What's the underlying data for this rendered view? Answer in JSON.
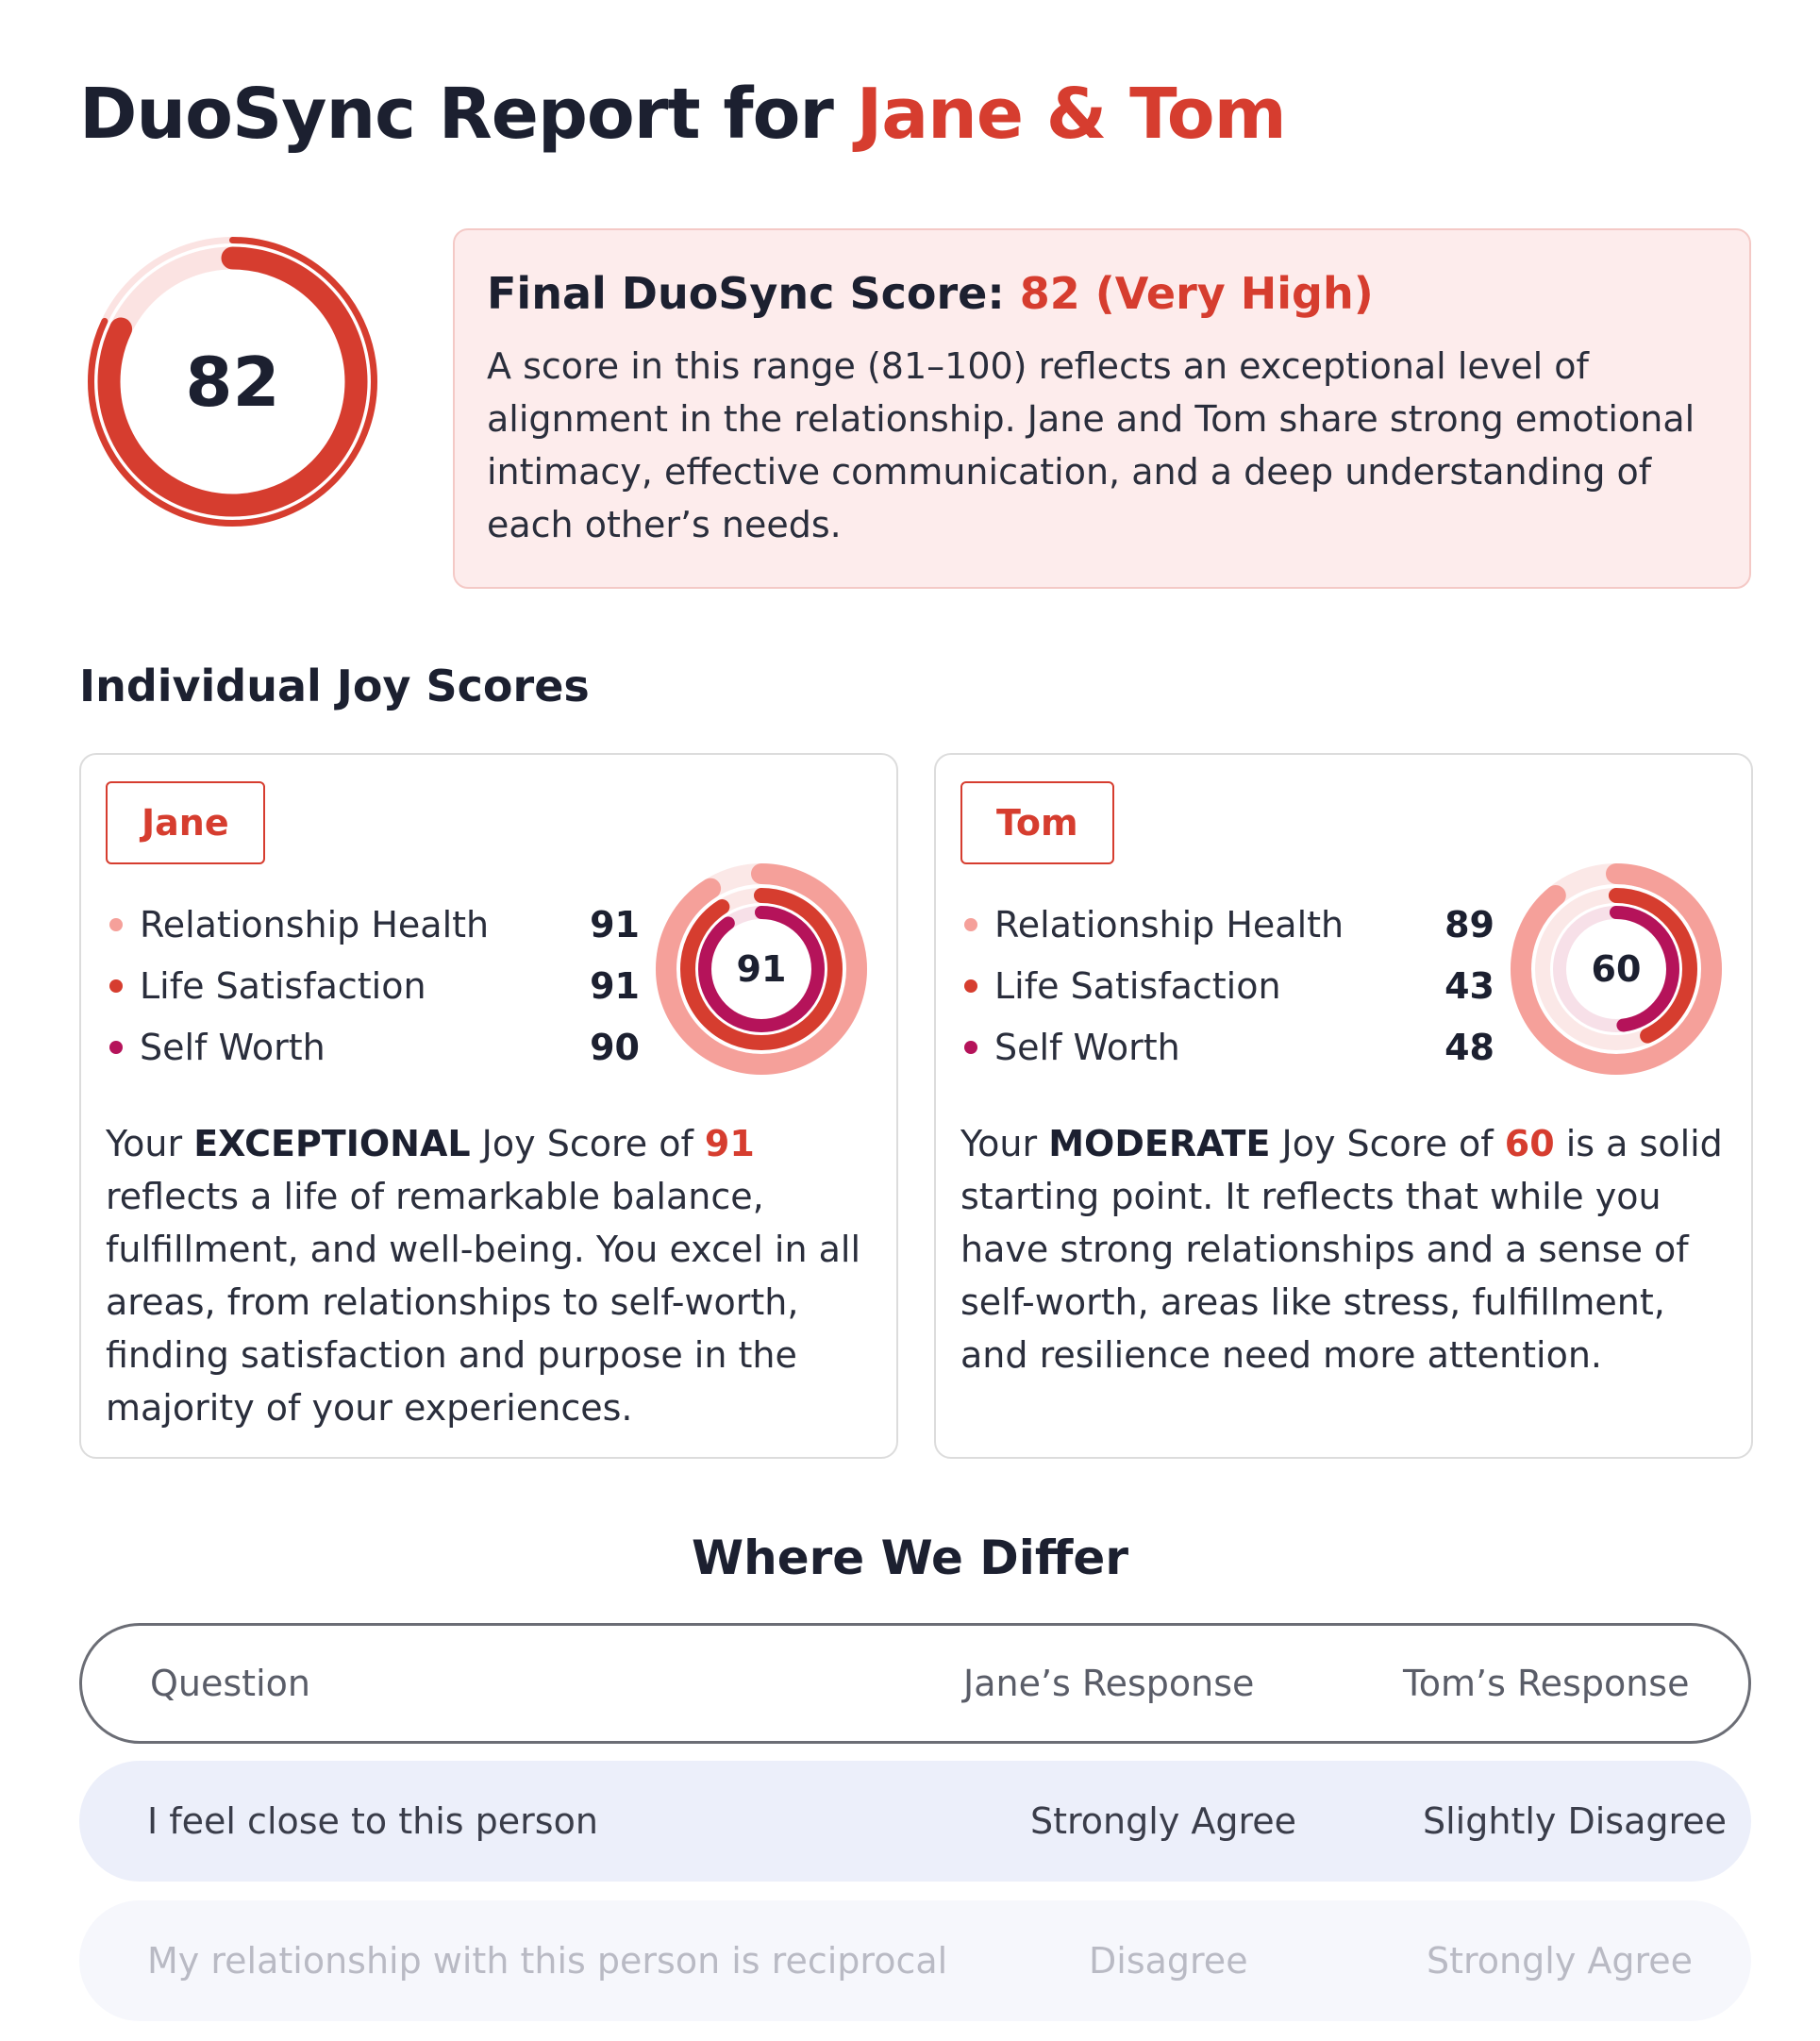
{
  "header": {
    "title_prefix": "DuoSync Report for ",
    "title_names": "Jane & Tom"
  },
  "final": {
    "score": "82",
    "score_fraction": 0.82,
    "title_label": "Final DuoSync Score: ",
    "title_value": "82 (Very High)",
    "description": "A score in this range (81–100) reflects an exceptional level of alignment in the relationship. Jane and Tom share strong emotional intimacy, effective communication, and a deep understanding of each other’s needs."
  },
  "individual": {
    "heading": "Individual Joy Scores",
    "cards": [
      {
        "name": "Jane",
        "joy_score": "91",
        "metrics": [
          {
            "label": "Relationship Health",
            "value": "91",
            "color": "#f5a09a"
          },
          {
            "label": "Life Satisfaction",
            "value": "91",
            "color": "#d63d2f"
          },
          {
            "label": "Self Worth",
            "value": "90",
            "color": "#b5135a"
          }
        ],
        "desc_prefix": "Your ",
        "desc_level": "EXCEPTIONAL",
        "desc_mid": " Joy Score of ",
        "desc_score": "91",
        "desc_rest": " reflects a life of remarkable balance, fulfillment, and well-being. You excel in all areas, from relationships to self-worth, finding satisfaction and purpose in the majority of your experiences."
      },
      {
        "name": "Tom",
        "joy_score": "60",
        "metrics": [
          {
            "label": "Relationship Health",
            "value": "89",
            "color": "#f5a09a"
          },
          {
            "label": "Life Satisfaction",
            "value": "43",
            "color": "#d63d2f"
          },
          {
            "label": "Self Worth",
            "value": "48",
            "color": "#b5135a"
          }
        ],
        "desc_prefix": "Your ",
        "desc_level": "MODERATE",
        "desc_mid": " Joy Score of ",
        "desc_score": "60",
        "desc_rest": " is a solid starting point. It reflects that while you have strong relationships and a sense of self-worth, areas like stress, fulfillment, and resilience need more attention."
      }
    ]
  },
  "differ": {
    "heading": "Where We Differ",
    "columns": [
      "Question",
      "Jane’s Response",
      "Tom’s Response"
    ],
    "rows": [
      [
        "I feel close to this person",
        "Strongly Agree",
        "Slightly Disagree"
      ],
      [
        "My relationship with this person is reciprocal",
        "Disagree",
        "Strongly Agree"
      ]
    ]
  },
  "colors": {
    "accent": "#d63d2f",
    "ring_light": "#f5a09a",
    "ring_dark": "#b5135a",
    "final_box_bg": "#fdecec"
  }
}
